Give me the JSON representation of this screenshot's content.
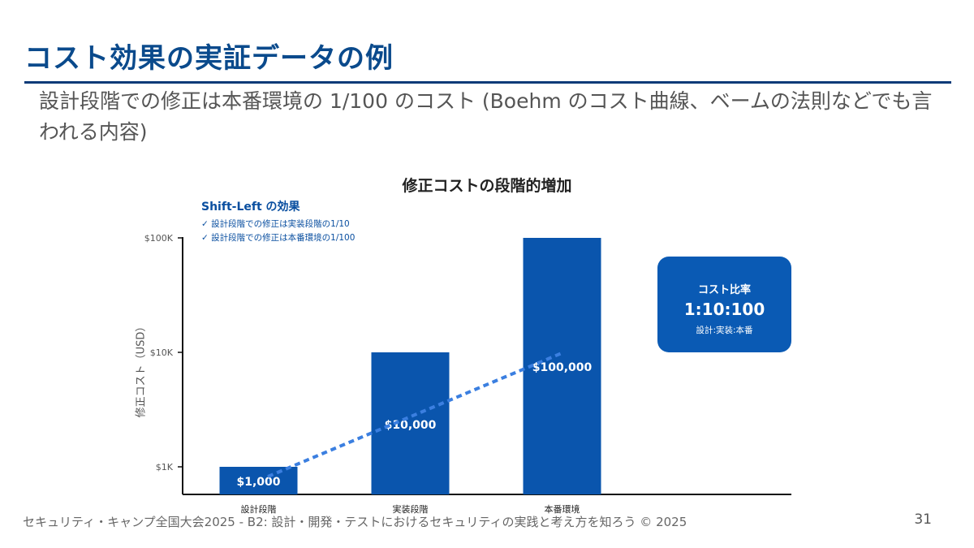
{
  "slide": {
    "title": "コスト効果の実証データの例",
    "subtitle": "設計段階での修正は本番環境の 1/100 のコスト (Boehm のコスト曲線、ベームの法則などでも言われる内容)",
    "footer": "セキュリティ・キャンプ全国大会2025 - B2: 設計・開発・テストにおけるセキュリティの実践と考え方を知ろう © 2025",
    "page_number": "31"
  },
  "annotation": {
    "title": "Shift-Left の効果",
    "items": [
      "✓ 設計段階での修正は実装段階の1/10",
      "✓ 設計段階での修正は本番環境の1/100"
    ]
  },
  "ratio_card": {
    "label": "コスト比率",
    "value": "1:10:100",
    "sub": "設計:実装:本番"
  },
  "colors": {
    "bar": "#0a55ad",
    "trend": "#3b7fe0",
    "title": "#0a4a8c",
    "card": "#0a5ab4"
  },
  "chart_data": {
    "type": "bar",
    "title": "修正コストの段階的増加",
    "ylabel": "修正コスト（USD）",
    "yscale": "log",
    "ylim": [
      600,
      100000
    ],
    "yticks": [
      1000,
      10000,
      100000
    ],
    "ytick_labels": [
      "$1K",
      "$10K",
      "$100K"
    ],
    "categories": [
      "設計段階",
      "実装段階",
      "本番環境"
    ],
    "values": [
      1000,
      10000,
      100000
    ],
    "value_labels": [
      "$1,000",
      "$10,000",
      "$100,000"
    ],
    "trend_line": {
      "style": "dashed",
      "from": 1000,
      "to": 10000
    }
  }
}
